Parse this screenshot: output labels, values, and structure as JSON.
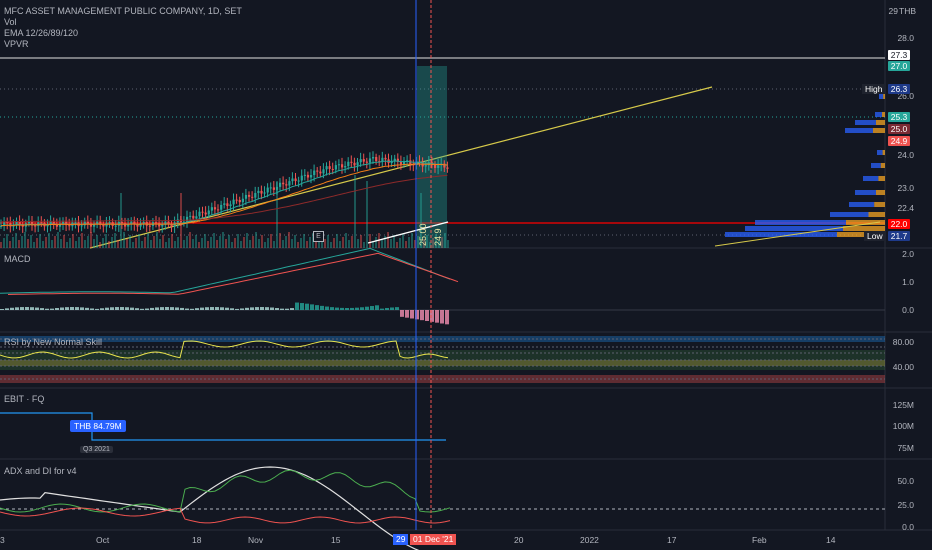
{
  "header": {
    "title": "MFC ASSET MANAGEMENT PUBLIC COMPANY, 1D, SET",
    "indicators": [
      "Vol",
      "EMA 12/26/89/120",
      "VPVR"
    ]
  },
  "currency": "THB",
  "pane_labels": {
    "macd": "MACD",
    "rsi": "RSI by New Normal Skill",
    "ebit": "EBIT · FQ",
    "adx": "ADX and DI for v4"
  },
  "price_axis": {
    "ticks": [
      "29",
      "28.0",
      "26.0",
      "24.0",
      "23.0",
      "22.4"
    ],
    "tags": {
      "p273": "27.3",
      "p270": "27.0",
      "p263": "26.3",
      "p253": "25.3",
      "p250": "25.0",
      "p249": "24.9",
      "p220": "22.0",
      "p217": "21.7"
    },
    "high_label": "High",
    "low_label": "Low"
  },
  "macd_axis": [
    "2.0",
    "1.0",
    "0.0"
  ],
  "rsi_axis": [
    "80.00",
    "40.00"
  ],
  "ebit_axis": [
    "125M",
    "100M",
    "75M"
  ],
  "adx_axis": [
    "50.0",
    "25.0",
    "0.0"
  ],
  "ebit_label": "THB 84.79M",
  "ebit_period": "Q3 2021",
  "drawing_labels": {
    "a": "25.00",
    "b": "24.9"
  },
  "earnings_badge": "E",
  "x_axis": {
    "labels": [
      "3",
      "Oct",
      "18",
      "Nov",
      "15",
      "20",
      "2022",
      "17",
      "Feb",
      "14"
    ],
    "highlight_day": "29",
    "highlight_date": "01 Dec '21"
  },
  "colors": {
    "background": "#131722",
    "up": "#26a69a",
    "down": "#ef5350",
    "ema_fast": "#e0e0e0",
    "ema_mid": "#26a69a",
    "ema_slow": "#f57f17",
    "trendline": "#d6c94a",
    "red_line": "#ff0000",
    "accent_blue": "#2962ff"
  },
  "chart_data": {
    "type": "candlestick",
    "symbol": "MFC ASSET MANAGEMENT PUBLIC COMPANY",
    "interval": "1D",
    "exchange": "SET",
    "ohlc_recent": [
      {
        "o": 22.4,
        "h": 22.6,
        "l": 22.0,
        "c": 22.5
      },
      {
        "o": 22.5,
        "h": 22.7,
        "l": 22.2,
        "c": 22.3
      },
      {
        "o": 22.3,
        "h": 22.5,
        "l": 22.1,
        "c": 22.4
      },
      {
        "o": 22.4,
        "h": 22.8,
        "l": 22.3,
        "c": 22.7
      },
      {
        "o": 22.7,
        "h": 23.0,
        "l": 22.5,
        "c": 22.9
      },
      {
        "o": 22.9,
        "h": 23.4,
        "l": 22.8,
        "c": 23.3
      },
      {
        "o": 23.3,
        "h": 23.6,
        "l": 23.1,
        "c": 23.2
      },
      {
        "o": 23.2,
        "h": 23.9,
        "l": 23.1,
        "c": 23.8
      },
      {
        "o": 23.8,
        "h": 24.2,
        "l": 23.6,
        "c": 23.7
      },
      {
        "o": 23.7,
        "h": 24.3,
        "l": 23.5,
        "c": 24.1
      },
      {
        "o": 24.1,
        "h": 24.6,
        "l": 23.9,
        "c": 24.5
      },
      {
        "o": 24.5,
        "h": 25.0,
        "l": 24.3,
        "c": 24.9
      },
      {
        "o": 24.9,
        "h": 25.2,
        "l": 24.6,
        "c": 24.8
      },
      {
        "o": 24.8,
        "h": 25.6,
        "l": 24.7,
        "c": 25.5
      },
      {
        "o": 25.5,
        "h": 26.0,
        "l": 25.3,
        "c": 25.9
      },
      {
        "o": 25.9,
        "h": 26.2,
        "l": 25.5,
        "c": 25.7
      },
      {
        "o": 25.7,
        "h": 26.3,
        "l": 25.6,
        "c": 26.2
      },
      {
        "o": 26.2,
        "h": 26.3,
        "l": 25.8,
        "c": 25.9
      },
      {
        "o": 25.9,
        "h": 26.0,
        "l": 25.2,
        "c": 25.3
      },
      {
        "o": 25.3,
        "h": 25.6,
        "l": 24.9,
        "c": 25.0
      },
      {
        "o": 25.0,
        "h": 25.3,
        "l": 24.8,
        "c": 24.9
      },
      {
        "o": 24.9,
        "h": 25.2,
        "l": 24.7,
        "c": 25.1
      },
      {
        "o": 25.1,
        "h": 25.4,
        "l": 24.9,
        "c": 25.3
      }
    ],
    "ylim": [
      21.5,
      29.0
    ],
    "high": 26.3,
    "low": 21.7,
    "last": 25.3
  }
}
